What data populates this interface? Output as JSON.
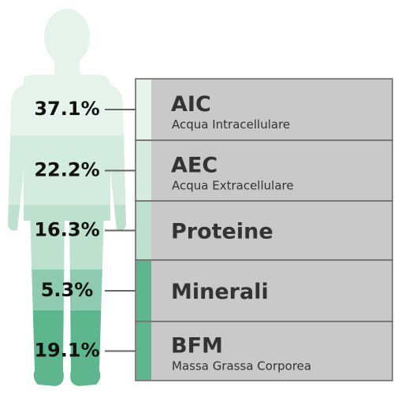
{
  "items": [
    {
      "percent": "37.1%",
      "abbr": "AIC",
      "name": "Acqua Intracellulare"
    },
    {
      "percent": "22.2%",
      "abbr": "AEC",
      "name": "Acqua Extracellulare"
    },
    {
      "percent": "16.3%",
      "abbr": "Proteine"
    },
    {
      "percent": "5.3%",
      "abbr": "Minerali"
    },
    {
      "percent": "19.1%",
      "abbr": "BFM",
      "name": "Massa Grassa Corporea"
    }
  ]
}
